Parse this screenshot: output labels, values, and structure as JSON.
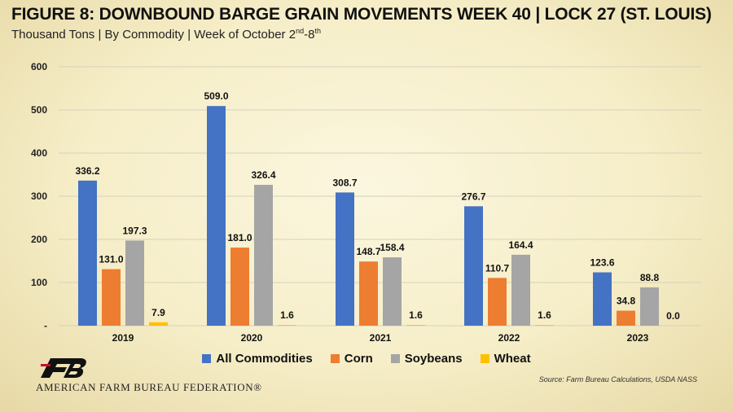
{
  "header": {
    "title": "FIGURE 8: DOWNBOUND BARGE GRAIN MOVEMENTS WEEK 40 | LOCK 27 (ST. LOUIS)",
    "subtitle_main": "Thousand Tons | By Commodity | Week of October 2",
    "subtitle_sup1": "nd",
    "subtitle_mid": "-8",
    "subtitle_sup2": "th"
  },
  "footer": {
    "org_name": "AMERICAN FARM BUREAU FEDERATION®",
    "source": "Source: Farm Bureau Calculations, USDA NASS"
  },
  "chart_data": {
    "type": "bar",
    "categories": [
      "2019",
      "2020",
      "2021",
      "2022",
      "2023"
    ],
    "series": [
      {
        "name": "All Commodities",
        "color": "#4472c4",
        "values": [
          336.2,
          509.0,
          308.7,
          276.7,
          123.6
        ]
      },
      {
        "name": "Corn",
        "color": "#ed7d31",
        "values": [
          131.0,
          181.0,
          148.7,
          110.7,
          34.8
        ]
      },
      {
        "name": "Soybeans",
        "color": "#a5a5a5",
        "values": [
          197.3,
          326.4,
          158.4,
          164.4,
          88.8
        ]
      },
      {
        "name": "Wheat",
        "color": "#ffc000",
        "values": [
          7.9,
          1.6,
          1.6,
          1.6,
          0.0
        ]
      }
    ],
    "y_ticks": [
      0,
      100,
      200,
      300,
      400,
      500,
      600
    ],
    "y_tick_labels": [
      "-",
      "100",
      "200",
      "300",
      "400",
      "500",
      "600"
    ],
    "ylim": [
      0,
      600
    ],
    "grid": true,
    "legend_position": "bottom",
    "data_labels": true
  }
}
